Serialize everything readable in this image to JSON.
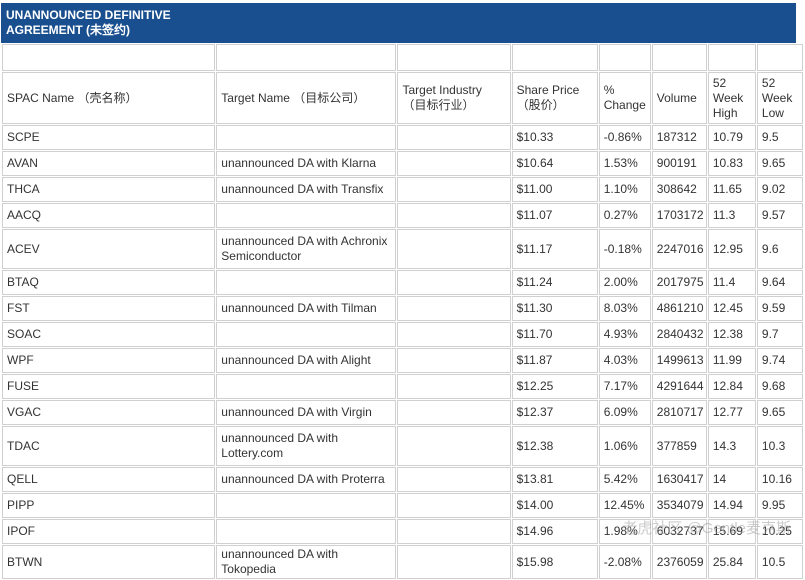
{
  "header": {
    "title": "UNANNOUNCED DEFINITIVE AGREEMENT (未签约)"
  },
  "table": {
    "columns": [
      "SPAC Name （壳名称）",
      "Target Name （目标公司）",
      "Target Industry （目标行业）",
      "Share Price （股价）",
      "% Change",
      "Volume",
      "52 Week High",
      "52 Week Low"
    ],
    "rows": [
      [
        "SCPE",
        null,
        null,
        "$10.33",
        "-0.86%",
        "187312",
        "10.79",
        "9.5"
      ],
      [
        "AVAN",
        "unannounced DA with Klarna",
        null,
        "$10.64",
        "1.53%",
        "900191",
        "10.83",
        "9.65"
      ],
      [
        "THCA",
        "unannounced DA with Transfix",
        null,
        "$11.00",
        "1.10%",
        "308642",
        "11.65",
        "9.02"
      ],
      [
        "AACQ",
        null,
        null,
        "$11.07",
        "0.27%",
        "1703172",
        "11.3",
        "9.57"
      ],
      [
        "ACEV",
        "unannounced DA with Achronix Semiconductor",
        null,
        "$11.17",
        "-0.18%",
        "2247016",
        "12.95",
        "9.6"
      ],
      [
        "BTAQ",
        null,
        null,
        "$11.24",
        "2.00%",
        "2017975",
        "11.4",
        "9.64"
      ],
      [
        "FST",
        "unannounced DA with Tilman",
        null,
        "$11.30",
        "8.03%",
        "4861210",
        "12.45",
        "9.59"
      ],
      [
        "SOAC",
        null,
        null,
        "$11.70",
        "4.93%",
        "2840432",
        "12.38",
        "9.7"
      ],
      [
        "WPF",
        "unannounced DA with Alight",
        null,
        "$11.87",
        "4.03%",
        "1499613",
        "11.99",
        "9.74"
      ],
      [
        "FUSE",
        null,
        null,
        "$12.25",
        "7.17%",
        "4291644",
        "12.84",
        "9.68"
      ],
      [
        "VGAC",
        "unannounced DA with Virgin",
        null,
        "$12.37",
        "6.09%",
        "2810717",
        "12.77",
        "9.65"
      ],
      [
        "TDAC",
        "unannounced DA with Lottery.com",
        null,
        "$12.38",
        "1.06%",
        "377859",
        "14.3",
        "10.3"
      ],
      [
        "QELL",
        "unannounced DA with Proterra",
        null,
        "$13.81",
        "5.42%",
        "1630417",
        "14",
        "10.16"
      ],
      [
        "PIPP",
        null,
        null,
        "$14.00",
        "12.45%",
        "3534079",
        "14.94",
        "9.95"
      ],
      [
        "IPOF",
        null,
        null,
        "$14.96",
        "1.98%",
        "6032737",
        "15.69",
        "10.25"
      ],
      [
        "BTWN",
        "unannounced DA with Tokopedia",
        null,
        "$15.98",
        "-2.08%",
        "2376059",
        "25.84",
        "10.5"
      ]
    ]
  },
  "watermark": "老虎社区 @Gentle麦克斯"
}
